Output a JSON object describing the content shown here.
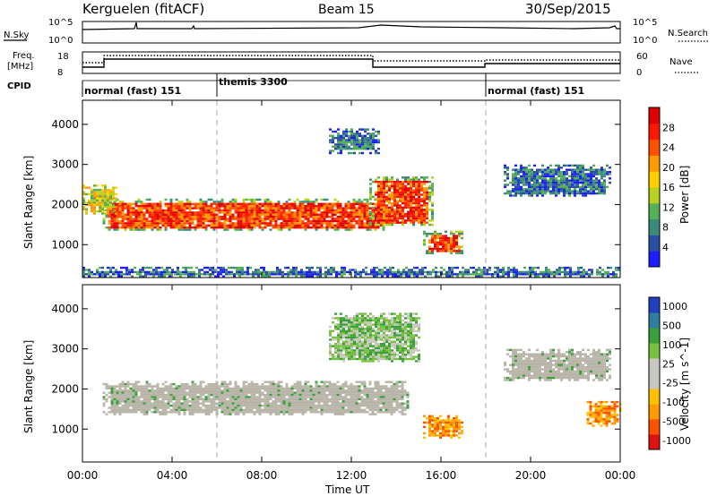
{
  "header": {
    "station": "Kerguelen (fitACF)",
    "beam": "Beam 15",
    "date": "30/Sep/2015"
  },
  "panels": {
    "nsky": {
      "label": "N.Sky",
      "right_label": "N.Search",
      "left_ticks": [
        "10^5",
        "10^0"
      ],
      "right_ticks": [
        "10^5",
        "10^0"
      ]
    },
    "freq": {
      "label_line1": "Freq.",
      "label_line2": "[MHz]",
      "right_label": "Nave",
      "left_ticks": [
        "18",
        "8"
      ],
      "right_ticks": [
        "60",
        "0"
      ]
    },
    "cpid": {
      "label": "CPID",
      "segments": [
        {
          "name": "normal (fast) 151",
          "start": 0,
          "end": 6
        },
        {
          "name": "themis 3300",
          "start": 6,
          "end": 18
        },
        {
          "name": "normal (fast) 151",
          "start": 18,
          "end": 24
        }
      ]
    }
  },
  "colors": {
    "power": [
      "#1c1cff",
      "#2b4fa0",
      "#3b8a7a",
      "#55b055",
      "#b8d020",
      "#ffd000",
      "#ff9a00",
      "#ff5000",
      "#ff1800",
      "#e00000"
    ],
    "velocity": [
      "#e01010",
      "#ff5000",
      "#ff9a00",
      "#ffc000",
      "#c8c8c0",
      "#c8c8c0",
      "#7ac040",
      "#3aa03a",
      "#2e7e9e",
      "#2040c0"
    ],
    "ground_scatter": "#b8b4a8"
  },
  "chart_data": [
    {
      "type": "heatmap",
      "title": "",
      "xlabel": "Time UT",
      "ylabel": "Slant Range [km]",
      "x_ticks": [
        "00:00",
        "04:00",
        "08:00",
        "12:00",
        "16:00",
        "20:00",
        "00:00"
      ],
      "x_range_hours": [
        0,
        24
      ],
      "y_ticks": [
        1000,
        2000,
        3000,
        4000
      ],
      "ylim": [
        180,
        4600
      ],
      "colorbar": {
        "label": "Power [dB]",
        "ticks": [
          4,
          8,
          12,
          16,
          20,
          24,
          28
        ],
        "range": [
          0,
          32
        ]
      },
      "regions": [
        {
          "t0": 0.9,
          "t1": 13.5,
          "r0": 1350,
          "r1": 2150,
          "level": "high"
        },
        {
          "t0": 12.8,
          "t1": 15.6,
          "r0": 1500,
          "r1": 2700,
          "level": "high"
        },
        {
          "t0": 15.2,
          "t1": 17.0,
          "r0": 800,
          "r1": 1350,
          "level": "high"
        },
        {
          "t0": 0.0,
          "t1": 1.5,
          "r0": 1800,
          "r1": 2500,
          "level": "medium"
        },
        {
          "t0": 11.0,
          "t1": 13.2,
          "r0": 3300,
          "r1": 3900,
          "level": "low"
        },
        {
          "t0": 18.8,
          "t1": 23.5,
          "r0": 2200,
          "r1": 3000,
          "level": "low"
        },
        {
          "t0": 0.0,
          "t1": 24.0,
          "r0": 200,
          "r1": 450,
          "level": "low"
        }
      ]
    },
    {
      "type": "heatmap",
      "title": "",
      "xlabel": "Time UT",
      "ylabel": "Slant Range [km]",
      "x_ticks": [
        "00:00",
        "04:00",
        "08:00",
        "12:00",
        "16:00",
        "20:00",
        "00:00"
      ],
      "x_range_hours": [
        0,
        24
      ],
      "y_ticks": [
        1000,
        2000,
        3000,
        4000
      ],
      "ylim": [
        180,
        4600
      ],
      "colorbar": {
        "label": "Velocity [m s^-1]",
        "ticks": [
          1000,
          500,
          100,
          25,
          -25,
          -100,
          -500,
          -1000
        ]
      },
      "regions": [
        {
          "t0": 0.9,
          "t1": 14.5,
          "r0": 1350,
          "r1": 2200,
          "level": "ground"
        },
        {
          "t0": 15.2,
          "t1": 17.0,
          "r0": 800,
          "r1": 1350,
          "level": "negative"
        },
        {
          "t0": 11.0,
          "t1": 15.0,
          "r0": 2700,
          "r1": 3900,
          "level": "positive"
        },
        {
          "t0": 18.8,
          "t1": 23.5,
          "r0": 2200,
          "r1": 3000,
          "level": "ground"
        },
        {
          "t0": 22.5,
          "t1": 24.0,
          "r0": 1100,
          "r1": 1700,
          "level": "negative"
        }
      ]
    }
  ]
}
